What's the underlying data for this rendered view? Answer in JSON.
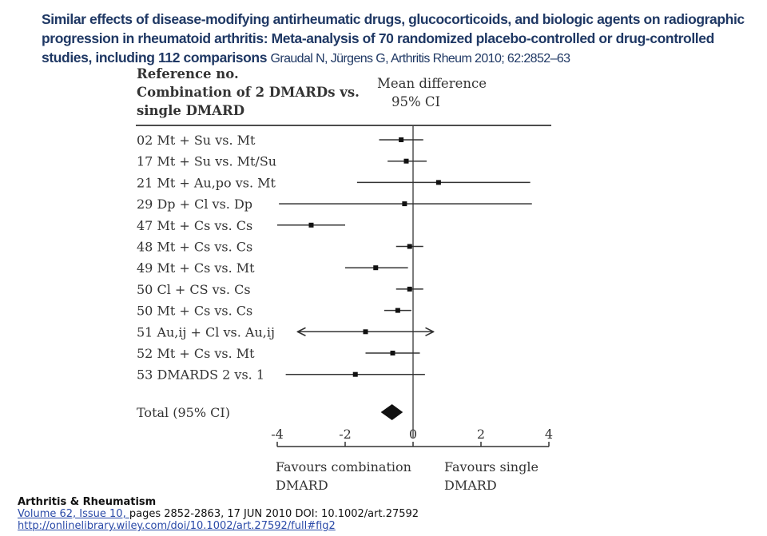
{
  "header": {
    "title": "Similar effects of disease-modifying antirheumatic drugs, glucocorticoids, and biologic agents on radiographic progression in rheumatoid arthritis: Meta-analysis of 70 randomized placebo-controlled or drug-controlled studies, including 112 comparisons",
    "citation": "Graudal N, Jürgens G, Arthritis Rheum 2010; 62:2852–63"
  },
  "chart_data": {
    "type": "forest",
    "column_header_left": [
      "Reference no.",
      "Combination of 2 DMARDs vs.",
      "single DMARD"
    ],
    "column_header_right": [
      "Mean difference",
      "95% CI"
    ],
    "xlim": [
      -4,
      4
    ],
    "x_ticks": [
      -4,
      -2,
      0,
      2,
      4
    ],
    "x_tick_labels": [
      "-4",
      "-2",
      "0",
      "2",
      "4"
    ],
    "favours_left": [
      "Favours combination",
      "DMARD"
    ],
    "favours_right": [
      "Favours single",
      "DMARD"
    ],
    "rows": [
      {
        "label": "02 Mt + Su vs. Mt",
        "mean": -0.35,
        "lo": -1.0,
        "hi": 0.3
      },
      {
        "label": "17 Mt + Su vs. Mt/Su",
        "mean": -0.2,
        "lo": -0.75,
        "hi": 0.4
      },
      {
        "label": "21 Mt + Au,po vs. Mt",
        "mean": 0.75,
        "lo": -1.65,
        "hi": 3.45
      },
      {
        "label": "29 Dp + Cl vs. Dp",
        "mean": -0.25,
        "lo": -3.95,
        "hi": 3.5
      },
      {
        "label": "47 Mt + Cs vs. Cs",
        "mean": -3.0,
        "lo": -4.0,
        "hi": -2.0
      },
      {
        "label": "48 Mt + Cs vs. Cs",
        "mean": -0.1,
        "lo": -0.5,
        "hi": 0.3
      },
      {
        "label": "49 Mt + Cs vs. Mt",
        "mean": -1.1,
        "lo": -2.0,
        "hi": -0.15
      },
      {
        "label": "50 Cl + CS vs. Cs",
        "mean": -0.1,
        "lo": -0.5,
        "hi": 0.3
      },
      {
        "label": "50 Mt + Cs vs. Cs",
        "mean": -0.45,
        "lo": -0.85,
        "hi": -0.05
      },
      {
        "label": "51 Au,ij + Cl vs. Au,ij",
        "mean": -1.4,
        "lo": -3.4,
        "hi": 0.6,
        "arrows": true
      },
      {
        "label": "52 Mt + Cs vs. Mt",
        "mean": -0.6,
        "lo": -1.4,
        "hi": 0.2
      },
      {
        "label": "53 DMARDS 2 vs. 1",
        "mean": -1.7,
        "lo": -3.75,
        "hi": 0.35
      }
    ],
    "total": {
      "label": "Total (95% CI)",
      "mean": -0.62,
      "lo": -0.95,
      "hi": -0.3
    }
  },
  "footer": {
    "journal": "Arthritis & Rheumatism",
    "volume_link": "Volume 62, Issue 10, ",
    "pages": "pages 2852-2863, 17 JUN 2010 DOI: 10.1002/art.27592",
    "url": "http://onlinelibrary.wiley.com/doi/10.1002/art.27592/full#fig2"
  }
}
